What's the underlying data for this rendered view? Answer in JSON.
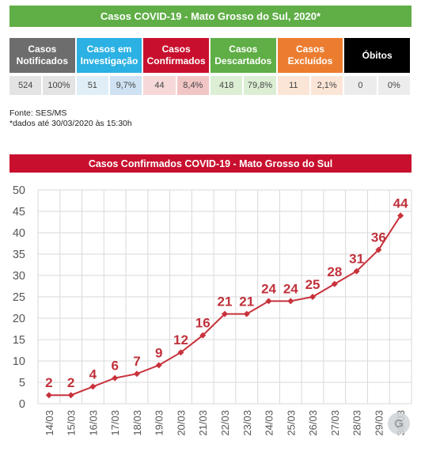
{
  "header": {
    "title": "Casos COVID-19 - Mato Grosso do Sul, 2020*"
  },
  "summary": {
    "columns": [
      {
        "label_lines": [
          "Casos",
          "Notificados"
        ],
        "value": "524",
        "percent": "100%",
        "header_color": "#6d6d6d",
        "cell_color": "#e3e3e3",
        "cell_color2": "#e3e3e3"
      },
      {
        "label_lines": [
          "Casos em",
          "Investigação"
        ],
        "value": "51",
        "percent": "9,7%",
        "header_color": "#2bb1e3",
        "cell_color": "#e0eef7",
        "cell_color2": "#cfe2f3"
      },
      {
        "label_lines": [
          "Casos",
          "Confirmados"
        ],
        "value": "44",
        "percent": "8,4%",
        "header_color": "#c8102e",
        "cell_color": "#f6d8d8",
        "cell_color2": "#f2c5c5"
      },
      {
        "label_lines": [
          "Casos",
          "Descartados"
        ],
        "value": "418",
        "percent": "79,8%",
        "header_color": "#5fae46",
        "cell_color": "#dcefd5",
        "cell_color2": "#dcefd5"
      },
      {
        "label_lines": [
          "Casos",
          "Excluídos"
        ],
        "value": "11",
        "percent": "2,1%",
        "header_color": "#ec7d30",
        "cell_color": "#fbe5d6",
        "cell_color2": "#fbe5d6"
      },
      {
        "label_lines": [
          "Óbitos"
        ],
        "value": "0",
        "percent": "0%",
        "header_color": "#000000",
        "cell_color": "#ececec",
        "cell_color2": "#ececec"
      }
    ]
  },
  "source": {
    "line1": "Fonte: SES/MS",
    "line2": "*dados até 30/03/2020 às 15:30h"
  },
  "chart_data": {
    "type": "line",
    "title": "Casos Confirmados COVID-19 -  Mato Grosso do Sul",
    "categories": [
      "14/03",
      "15/03",
      "16/03",
      "17/03",
      "18/03",
      "19/03",
      "20/03",
      "21/03",
      "22/03",
      "23/03",
      "24/03",
      "25/03",
      "26/03",
      "27/03",
      "28/03",
      "29/03",
      "30/03"
    ],
    "values": [
      2,
      2,
      4,
      6,
      7,
      9,
      12,
      16,
      21,
      21,
      24,
      24,
      25,
      28,
      31,
      36,
      44
    ],
    "ylim": [
      0,
      50
    ],
    "yticks": [
      0,
      5,
      10,
      15,
      20,
      25,
      30,
      35,
      40,
      45,
      50
    ],
    "grid": true,
    "line_color": "#c8323c",
    "label_color": "#c0323c"
  },
  "watermark": {
    "text": "G"
  }
}
